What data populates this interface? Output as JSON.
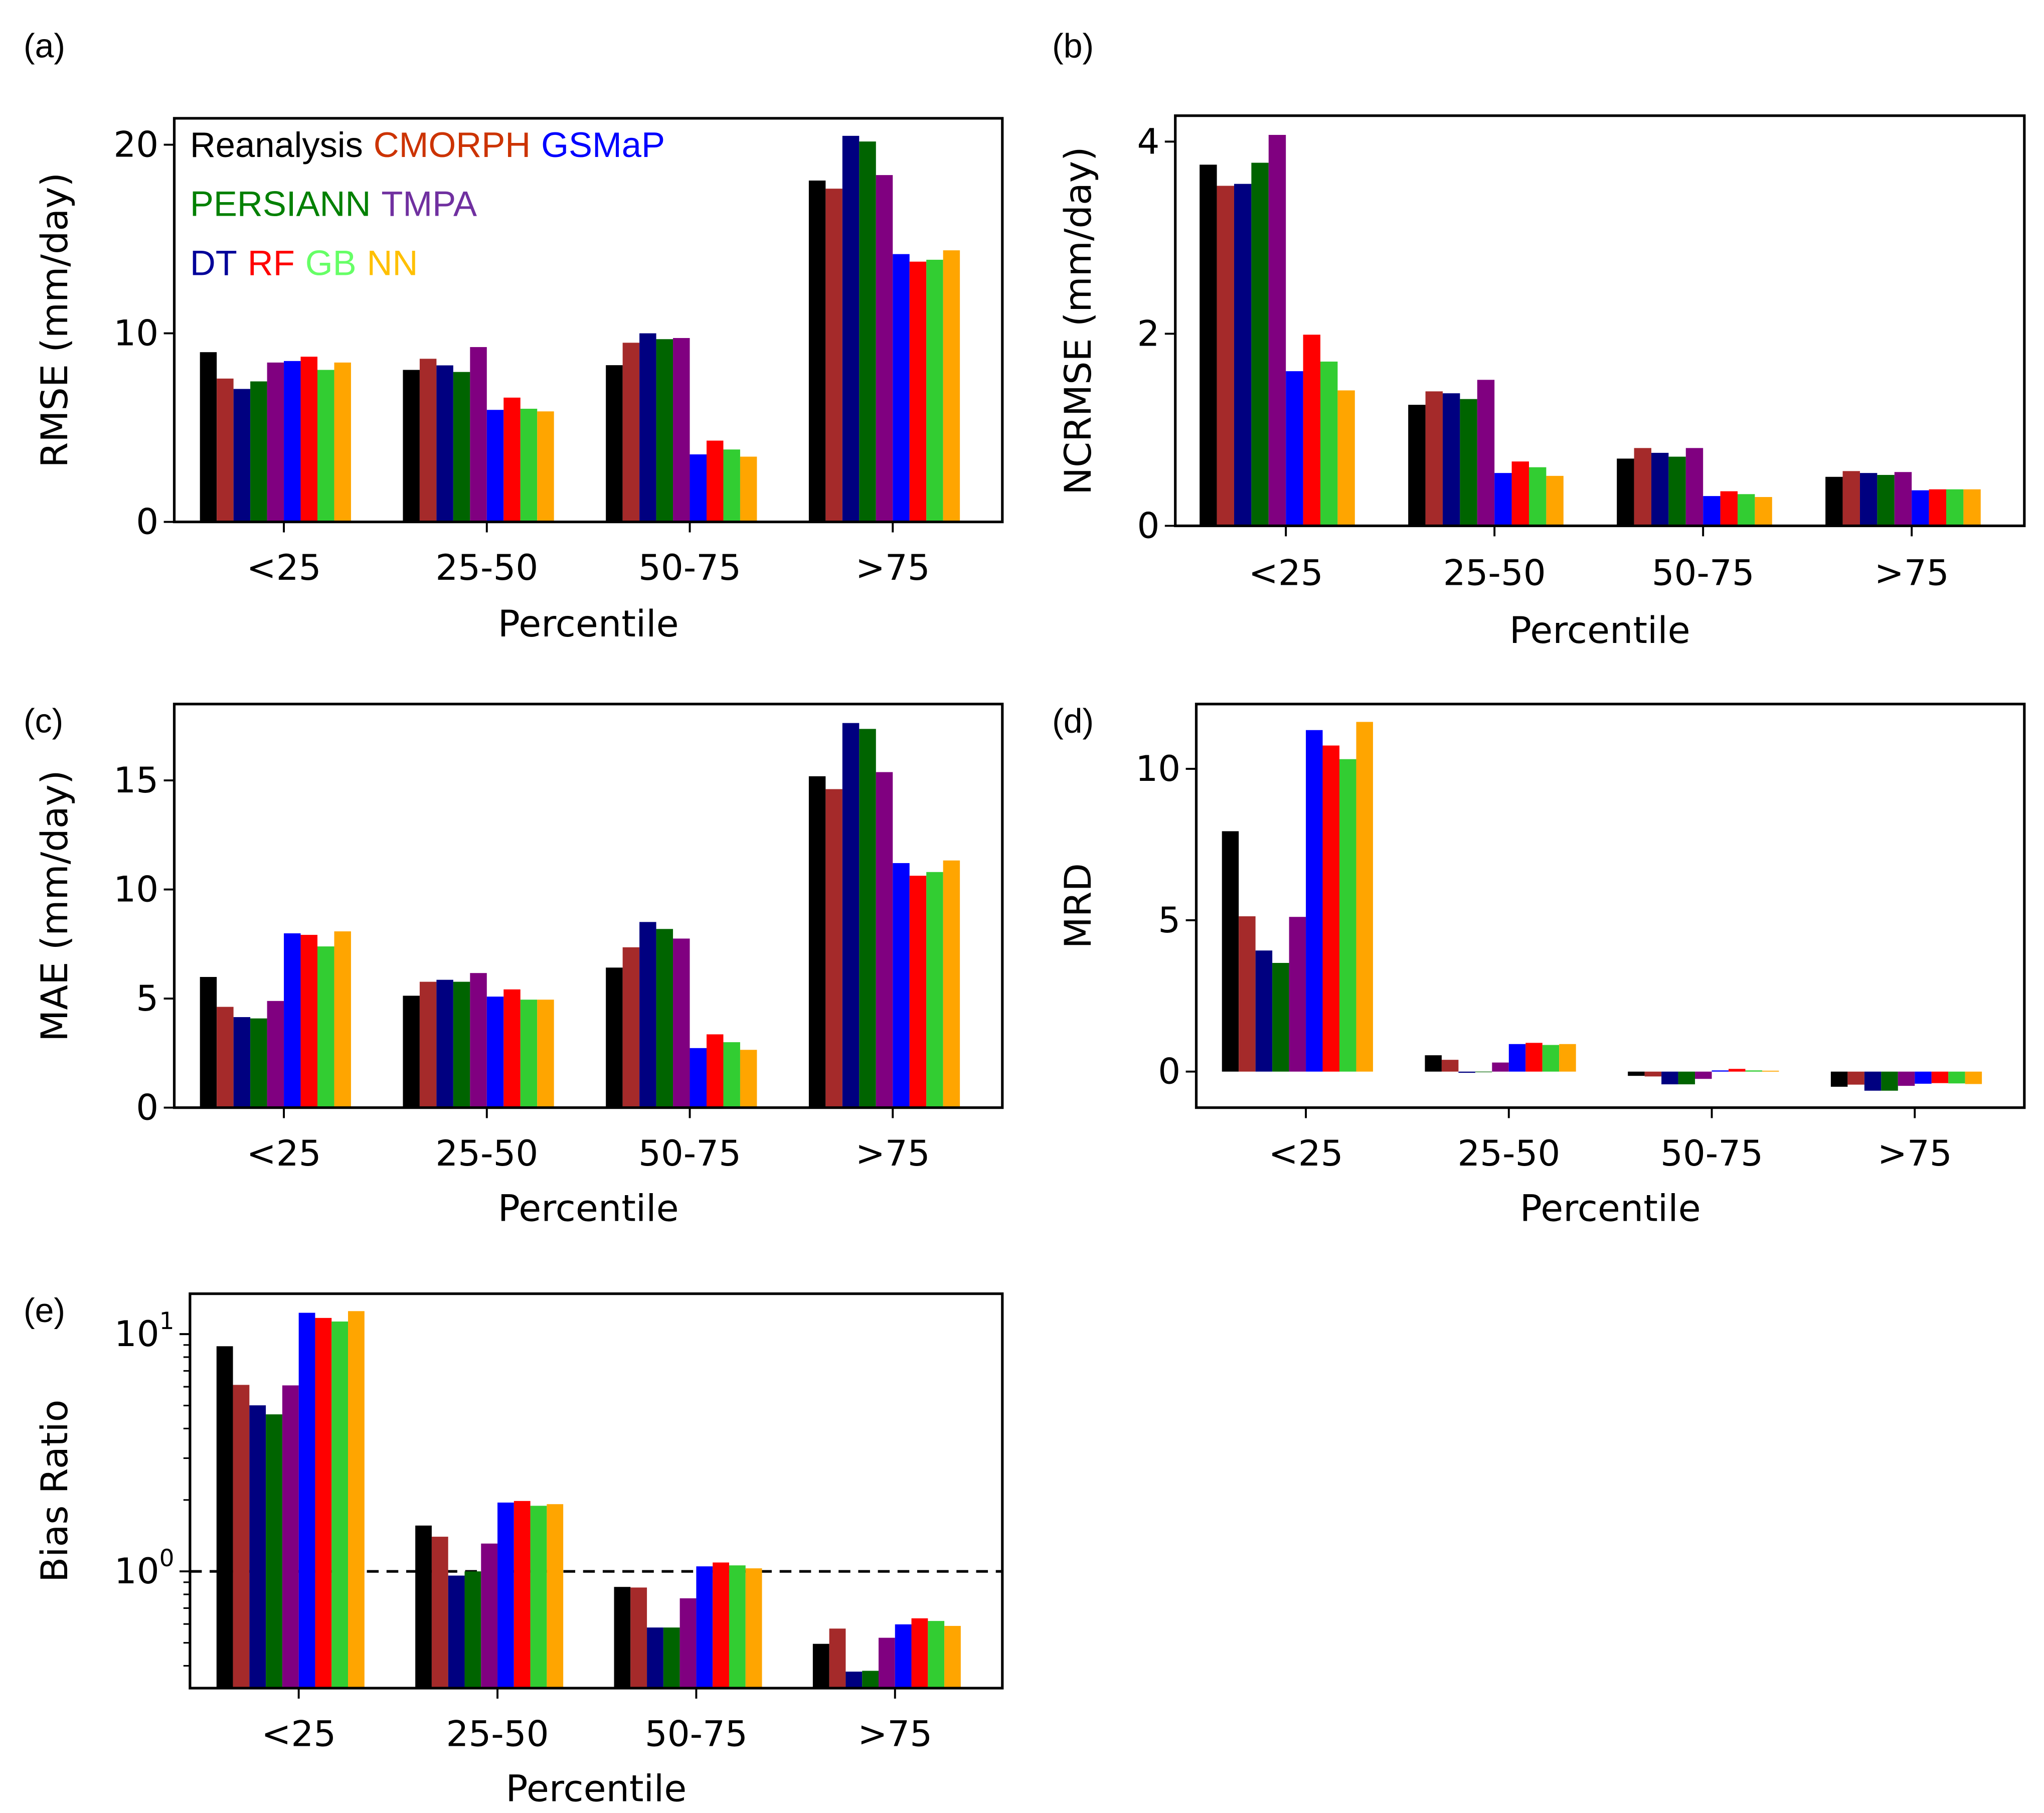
{
  "legend": {
    "lines": [
      [
        {
          "text": "Reanalysis",
          "color": "#000000"
        },
        {
          "text": "CMORPH",
          "color": "#cc3300"
        },
        {
          "text": "GSMaP",
          "color": "#0000ff"
        }
      ],
      [
        {
          "text": "PERSIANN",
          "color": "#008000"
        },
        {
          "text": "TMPA",
          "color": "#7030a0"
        }
      ],
      [
        {
          "text": "DT",
          "color": "#000099"
        },
        {
          "text": "RF",
          "color": "#ff0000"
        },
        {
          "text": "GB",
          "color": "#66ff66"
        },
        {
          "text": "NN",
          "color": "#ffc000"
        }
      ]
    ]
  },
  "series_colors": [
    "#000000",
    "#a52a2a",
    "#000080",
    "#006400",
    "#800080",
    "#0000ff",
    "#ff0000",
    "#32cd32",
    "#ffa500"
  ],
  "chart_data": [
    {
      "panel_label": "(a)",
      "type": "bar",
      "title": "",
      "categories": [
        "<25",
        "25-50",
        "50-75",
        ">75"
      ],
      "xlabel": "Percentile",
      "ylabel": "RMSE (mm/day)",
      "yscale": "linear",
      "ylim": [
        0,
        21.4
      ],
      "yticks": [
        0,
        10,
        20
      ],
      "ytick_labels": [
        "0",
        "10",
        "20"
      ],
      "series": [
        {
          "name": "Reanalysis",
          "values": [
            9.0,
            8.06,
            8.31,
            18.1
          ]
        },
        {
          "name": "CMORPH",
          "values": [
            7.6,
            8.65,
            9.5,
            17.67
          ]
        },
        {
          "name": "GSMaP",
          "values": [
            7.05,
            8.3,
            10.0,
            20.47
          ]
        },
        {
          "name": "PERSIANN",
          "values": [
            7.45,
            7.95,
            9.69,
            20.17
          ]
        },
        {
          "name": "TMPA",
          "values": [
            8.45,
            9.27,
            9.75,
            18.39
          ]
        },
        {
          "name": "DT",
          "values": [
            8.53,
            5.94,
            3.58,
            14.2
          ]
        },
        {
          "name": "RF",
          "values": [
            8.76,
            6.59,
            4.31,
            13.8
          ]
        },
        {
          "name": "GB",
          "values": [
            8.06,
            6.0,
            3.84,
            13.9
          ]
        },
        {
          "name": "NN",
          "values": [
            8.45,
            5.86,
            3.46,
            14.4
          ]
        }
      ]
    },
    {
      "panel_label": "(b)",
      "type": "bar",
      "title": "",
      "categories": [
        "<25",
        "25-50",
        "50-75",
        ">75"
      ],
      "xlabel": "Percentile",
      "ylabel": "NCRMSE (mm/day)",
      "yscale": "linear",
      "ylim": [
        0,
        4.27
      ],
      "yticks": [
        0,
        2,
        4
      ],
      "ytick_labels": [
        "0",
        "2",
        "4"
      ],
      "series": [
        {
          "name": "Reanalysis",
          "values": [
            3.76,
            1.26,
            0.7,
            0.51
          ]
        },
        {
          "name": "CMORPH",
          "values": [
            3.54,
            1.4,
            0.81,
            0.57
          ]
        },
        {
          "name": "GSMaP",
          "values": [
            3.56,
            1.38,
            0.76,
            0.55
          ]
        },
        {
          "name": "PERSIANN",
          "values": [
            3.78,
            1.32,
            0.72,
            0.53
          ]
        },
        {
          "name": "TMPA",
          "values": [
            4.07,
            1.52,
            0.81,
            0.56
          ]
        },
        {
          "name": "DT",
          "values": [
            1.61,
            0.55,
            0.31,
            0.37
          ]
        },
        {
          "name": "RF",
          "values": [
            1.99,
            0.67,
            0.36,
            0.38
          ]
        },
        {
          "name": "GB",
          "values": [
            1.71,
            0.61,
            0.33,
            0.38
          ]
        },
        {
          "name": "NN",
          "values": [
            1.41,
            0.52,
            0.3,
            0.38
          ]
        }
      ]
    },
    {
      "panel_label": "(c)",
      "type": "bar",
      "title": "",
      "categories": [
        "<25",
        "25-50",
        "50-75",
        ">75"
      ],
      "xlabel": "Percentile",
      "ylabel": "MAE (mm/day)",
      "yscale": "linear",
      "ylim": [
        0,
        18.5
      ],
      "yticks": [
        0,
        5,
        10,
        15
      ],
      "ytick_labels": [
        "0",
        "5",
        "10",
        "15"
      ],
      "series": [
        {
          "name": "Reanalysis",
          "values": [
            5.99,
            5.13,
            6.42,
            15.19
          ]
        },
        {
          "name": "CMORPH",
          "values": [
            4.62,
            5.77,
            7.35,
            14.6
          ]
        },
        {
          "name": "GSMaP",
          "values": [
            4.15,
            5.86,
            8.51,
            17.63
          ]
        },
        {
          "name": "PERSIANN",
          "values": [
            4.09,
            5.77,
            8.19,
            17.36
          ]
        },
        {
          "name": "TMPA",
          "values": [
            4.89,
            6.17,
            7.75,
            15.38
          ]
        },
        {
          "name": "DT",
          "values": [
            7.99,
            5.09,
            2.73,
            11.21
          ]
        },
        {
          "name": "RF",
          "values": [
            7.92,
            5.42,
            3.36,
            10.63
          ]
        },
        {
          "name": "GB",
          "values": [
            7.39,
            4.95,
            3.0,
            10.8
          ]
        },
        {
          "name": "NN",
          "values": [
            8.08,
            4.95,
            2.65,
            11.33
          ]
        }
      ]
    },
    {
      "panel_label": "(d)",
      "type": "bar",
      "title": "",
      "categories": [
        "<25",
        "25-50",
        "50-75",
        ">75"
      ],
      "xlabel": "Percentile",
      "ylabel": "MRD",
      "yscale": "linear",
      "ylim": [
        -1.19,
        12.14
      ],
      "yticks": [
        0,
        5,
        10
      ],
      "ytick_labels": [
        "0",
        "5",
        "10"
      ],
      "series": [
        {
          "name": "Reanalysis",
          "values": [
            7.94,
            0.54,
            -0.14,
            -0.5
          ]
        },
        {
          "name": "CMORPH",
          "values": [
            5.13,
            0.39,
            -0.16,
            -0.43
          ]
        },
        {
          "name": "GSMaP",
          "values": [
            4.0,
            -0.04,
            -0.42,
            -0.63
          ]
        },
        {
          "name": "PERSIANN",
          "values": [
            3.59,
            -0.02,
            -0.42,
            -0.63
          ]
        },
        {
          "name": "TMPA",
          "values": [
            5.11,
            0.3,
            -0.24,
            -0.47
          ]
        },
        {
          "name": "DT",
          "values": [
            11.28,
            0.91,
            0.04,
            -0.4
          ]
        },
        {
          "name": "RF",
          "values": [
            10.77,
            0.95,
            0.09,
            -0.38
          ]
        },
        {
          "name": "GB",
          "values": [
            10.32,
            0.88,
            0.04,
            -0.39
          ]
        },
        {
          "name": "NN",
          "values": [
            11.55,
            0.91,
            0.03,
            -0.41
          ]
        }
      ]
    },
    {
      "panel_label": "(e)",
      "type": "bar",
      "title": "",
      "categories": [
        "<25",
        "25-50",
        "50-75",
        ">75"
      ],
      "xlabel": "Percentile",
      "ylabel": "Bias Ratio",
      "yscale": "log",
      "ylim": [
        0.322,
        14.8
      ],
      "yticks": [
        1,
        10
      ],
      "ytick_labels": [
        {
          "base": "10",
          "exp": "0"
        },
        {
          "base": "10",
          "exp": "1"
        }
      ],
      "reference_line": {
        "y": 1,
        "style": "dashed"
      },
      "series": [
        {
          "name": "Reanalysis",
          "values": [
            8.89,
            1.56,
            0.86,
            0.495
          ]
        },
        {
          "name": "CMORPH",
          "values": [
            6.11,
            1.4,
            0.855,
            0.574
          ]
        },
        {
          "name": "GSMaP",
          "values": [
            5.01,
            0.96,
            0.58,
            0.378
          ]
        },
        {
          "name": "PERSIANN",
          "values": [
            4.59,
            1.0,
            0.58,
            0.381
          ]
        },
        {
          "name": "TMPA",
          "values": [
            6.08,
            1.31,
            0.77,
            0.525
          ]
        },
        {
          "name": "DT",
          "values": [
            12.3,
            1.95,
            1.05,
            0.598
          ]
        },
        {
          "name": "RF",
          "values": [
            11.7,
            1.98,
            1.09,
            0.634
          ]
        },
        {
          "name": "GB",
          "values": [
            11.3,
            1.89,
            1.06,
            0.618
          ]
        },
        {
          "name": "NN",
          "values": [
            12.5,
            1.92,
            1.03,
            0.589
          ]
        }
      ]
    }
  ]
}
